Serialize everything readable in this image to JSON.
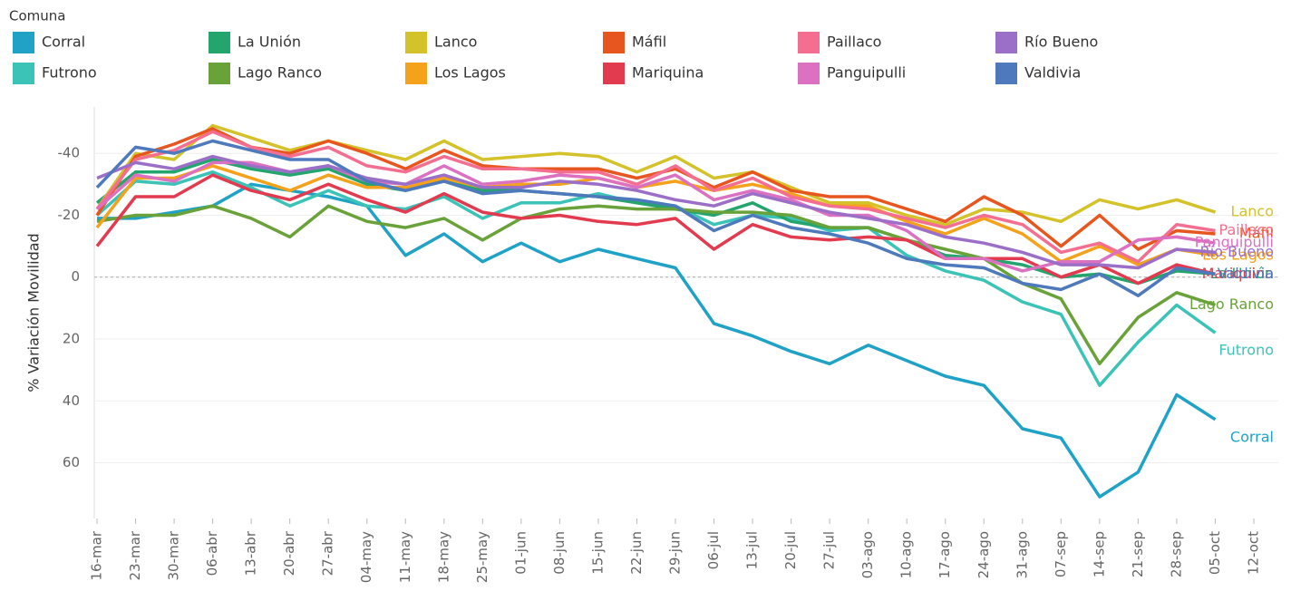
{
  "chart_data": {
    "type": "line",
    "legend_title": "Comuna",
    "ylabel": "% Variación Movilidad",
    "y_inverted": true,
    "grid": true,
    "ylim": [
      -55,
      78
    ],
    "yticks": [
      -40,
      -20,
      0,
      20,
      40,
      60
    ],
    "categories": [
      "16-mar",
      "23-mar",
      "30-mar",
      "06-abr",
      "13-abr",
      "20-abr",
      "27-abr",
      "04-may",
      "11-may",
      "18-may",
      "25-may",
      "01-jun",
      "08-jun",
      "15-jun",
      "22-jun",
      "29-jun",
      "06-jul",
      "13-jul",
      "20-jul",
      "27-jul",
      "03-ago",
      "10-ago",
      "17-ago",
      "24-ago",
      "31-ago",
      "07-sep",
      "14-sep",
      "21-sep",
      "28-sep",
      "05-oct",
      "12-oct"
    ],
    "series": [
      {
        "name": "Corral",
        "color": "#1fa2c6",
        "values": [
          -19,
          -19,
          -21,
          -23,
          -30,
          -28,
          -26,
          -23,
          -7,
          -14,
          -5,
          -11,
          -5,
          -9,
          -6,
          -3,
          15,
          19,
          24,
          28,
          22,
          27,
          32,
          35,
          49,
          52,
          71,
          63,
          38,
          46,
          null
        ]
      },
      {
        "name": "Futrono",
        "color": "#3cc3b8",
        "values": [
          -20,
          -31,
          -30,
          -34,
          -29,
          -23,
          -28,
          -23,
          -22,
          -26,
          -19,
          -24,
          -24,
          -27,
          -24,
          -23,
          -17,
          -20,
          -19,
          -15,
          -16,
          -7,
          -2,
          1,
          8,
          12,
          35,
          21,
          9,
          18,
          null
        ]
      },
      {
        "name": "La Unión",
        "color": "#24a56e",
        "values": [
          -24,
          -34,
          -34,
          -38,
          -35,
          -33,
          -35,
          -30,
          -28,
          -31,
          -28,
          -28,
          -27,
          -26,
          -24,
          -22,
          -20,
          -24,
          -18,
          -16,
          -16,
          -12,
          -7,
          -6,
          -4,
          0,
          -1,
          2,
          -2,
          -1,
          null
        ]
      },
      {
        "name": "Lago Ranco",
        "color": "#6aa23a",
        "values": [
          -18,
          -20,
          -20,
          -23,
          -19,
          -13,
          -23,
          -18,
          -16,
          -19,
          -12,
          -19,
          -22,
          -23,
          -22,
          -22,
          -21,
          -21,
          -20,
          -16,
          -16,
          -12,
          -9,
          -6,
          2,
          7,
          28,
          13,
          5,
          9,
          null
        ]
      },
      {
        "name": "Lanco",
        "color": "#d4c22b",
        "values": [
          -22,
          -40,
          -38,
          -49,
          -45,
          -41,
          -44,
          -41,
          -38,
          -44,
          -38,
          -39,
          -40,
          -39,
          -34,
          -39,
          -32,
          -34,
          -29,
          -24,
          -24,
          -20,
          -17,
          -22,
          -21,
          -18,
          -25,
          -22,
          -25,
          -21,
          null
        ]
      },
      {
        "name": "Los Lagos",
        "color": "#f4a21b",
        "values": [
          -16,
          -32,
          -32,
          -36,
          -32,
          -28,
          -33,
          -29,
          -29,
          -32,
          -29,
          -30,
          -30,
          -32,
          -29,
          -31,
          -28,
          -30,
          -27,
          -23,
          -23,
          -18,
          -14,
          -19,
          -14,
          -5,
          -10,
          -4,
          -9,
          -7,
          null
        ]
      },
      {
        "name": "Máfil",
        "color": "#e8561f",
        "values": [
          -20,
          -39,
          -43,
          -48,
          -42,
          -40,
          -44,
          -40,
          -35,
          -41,
          -36,
          -35,
          -35,
          -35,
          -32,
          -35,
          -29,
          -34,
          -28,
          -26,
          -26,
          -22,
          -18,
          -26,
          -20,
          -10,
          -20,
          -9,
          -15,
          -14,
          null
        ]
      },
      {
        "name": "Mariquina",
        "color": "#e23a4e",
        "values": [
          -10,
          -26,
          -26,
          -33,
          -28,
          -25,
          -30,
          -25,
          -21,
          -27,
          -21,
          -19,
          -20,
          -18,
          -17,
          -19,
          -9,
          -17,
          -13,
          -12,
          -13,
          -12,
          -6,
          -6,
          -6,
          0,
          -4,
          2,
          -4,
          -1,
          null
        ]
      },
      {
        "name": "Paillaco",
        "color": "#f36e91",
        "values": [
          -22,
          -38,
          -41,
          -47,
          -42,
          -39,
          -42,
          -36,
          -34,
          -39,
          -35,
          -35,
          -34,
          -34,
          -30,
          -36,
          -28,
          -32,
          -26,
          -23,
          -22,
          -19,
          -16,
          -20,
          -17,
          -8,
          -11,
          -5,
          -17,
          -15,
          null
        ]
      },
      {
        "name": "Panguipulli",
        "color": "#db71c0",
        "values": [
          -22,
          -33,
          -31,
          -37,
          -37,
          -34,
          -36,
          -31,
          -30,
          -36,
          -30,
          -31,
          -33,
          -32,
          -29,
          -33,
          -25,
          -28,
          -25,
          -20,
          -20,
          -15,
          -6,
          -6,
          -2,
          -5,
          -5,
          -12,
          -13,
          -11,
          null
        ]
      },
      {
        "name": "Río Bueno",
        "color": "#9b6fc8",
        "values": [
          -32,
          -37,
          -35,
          -39,
          -36,
          -34,
          -36,
          -32,
          -30,
          -33,
          -29,
          -29,
          -31,
          -30,
          -28,
          -25,
          -23,
          -27,
          -24,
          -21,
          -19,
          -17,
          -13,
          -11,
          -8,
          -4,
          -4,
          -3,
          -9,
          -8,
          null
        ]
      },
      {
        "name": "Valdivia",
        "color": "#4e79bd",
        "values": [
          -29,
          -42,
          -40,
          -44,
          -41,
          -38,
          -38,
          -31,
          -28,
          -31,
          -27,
          -28,
          -27,
          -26,
          -25,
          -23,
          -15,
          -20,
          -16,
          -14,
          -11,
          -6,
          -4,
          -3,
          2,
          4,
          -1,
          6,
          -3,
          -1,
          null
        ]
      }
    ]
  }
}
